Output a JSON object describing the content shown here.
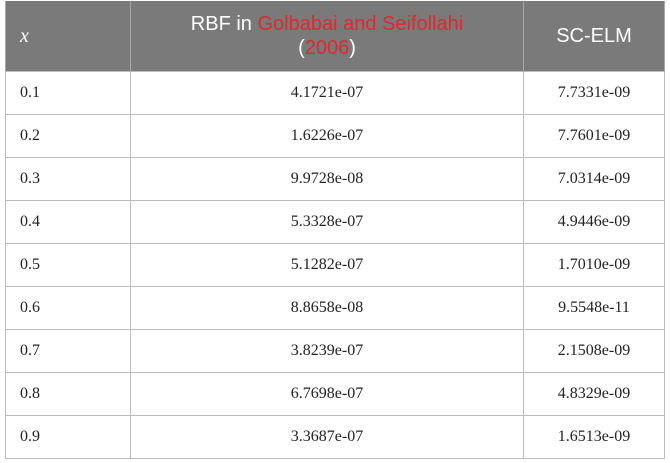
{
  "table": {
    "headers": {
      "x": "x",
      "rbf_prefix": "RBF in ",
      "rbf_ref": "Golbabai and Seifollahi",
      "rbf_open": "(",
      "rbf_year": "2006",
      "rbf_close": ")",
      "scelm": "SC-ELM"
    },
    "rows": [
      {
        "x": "0.1",
        "rbf": "4.1721e-07",
        "scelm": "7.7331e-09"
      },
      {
        "x": "0.2",
        "rbf": "1.6226e-07",
        "scelm": "7.7601e-09"
      },
      {
        "x": "0.3",
        "rbf": "9.9728e-08",
        "scelm": "7.0314e-09"
      },
      {
        "x": "0.4",
        "rbf": "5.3328e-07",
        "scelm": "4.9446e-09"
      },
      {
        "x": "0.5",
        "rbf": "5.1282e-07",
        "scelm": "1.7010e-09"
      },
      {
        "x": "0.6",
        "rbf": "8.8658e-08",
        "scelm": "9.5548e-11"
      },
      {
        "x": "0.7",
        "rbf": "3.8239e-07",
        "scelm": "2.1508e-09"
      },
      {
        "x": "0.8",
        "rbf": "6.7698e-07",
        "scelm": "4.8329e-09"
      },
      {
        "x": "0.9",
        "rbf": "3.3687e-07",
        "scelm": "1.6513e-09"
      }
    ]
  },
  "colors": {
    "header_bg": "#7a7a7a",
    "header_text": "#ffffff",
    "citation_link": "#e0282e",
    "border": "#bdbdbd"
  }
}
